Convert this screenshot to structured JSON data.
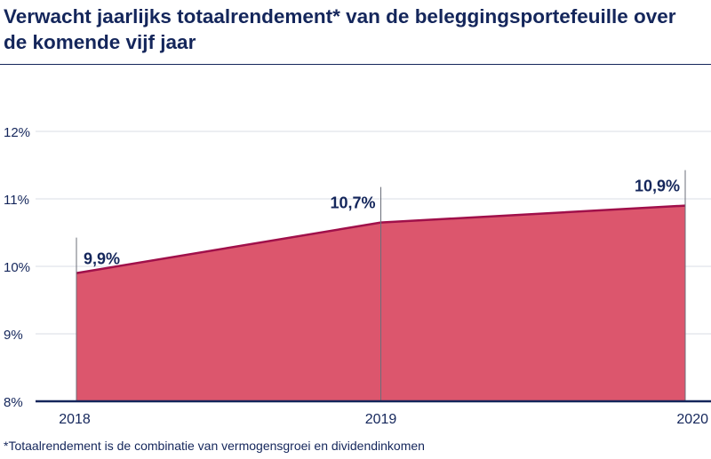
{
  "title": "Verwacht jaarlijks totaalrendement* van de beleggingsportefeuille over de komende vijf jaar",
  "footnote": "*Totaalrendement is de combinatie van vermogensgroei en dividendinkomen",
  "colors": {
    "area": "#dc566d",
    "area_line": "#a0104a",
    "text": "#14265b",
    "axis": "#14265b",
    "grid": "#d9dde6",
    "marker_line": "#6b6f7a"
  },
  "chart_data": {
    "type": "area",
    "title": "Verwacht jaarlijks totaalrendement* van de beleggingsportefeuille over de komende vijf jaar",
    "xlabel": "",
    "ylabel": "",
    "categories": [
      "2018",
      "2019",
      "2020"
    ],
    "values": [
      9.9,
      10.65,
      10.9
    ],
    "data_labels": [
      "9,9%",
      "10,7%",
      "10,9%"
    ],
    "y_ticks": [
      8,
      9,
      10,
      11,
      12
    ],
    "y_tick_labels": [
      "8%",
      "9%",
      "10%",
      "11%",
      "12%"
    ],
    "ylim": [
      8,
      12
    ],
    "grid": true,
    "legend": "none"
  }
}
